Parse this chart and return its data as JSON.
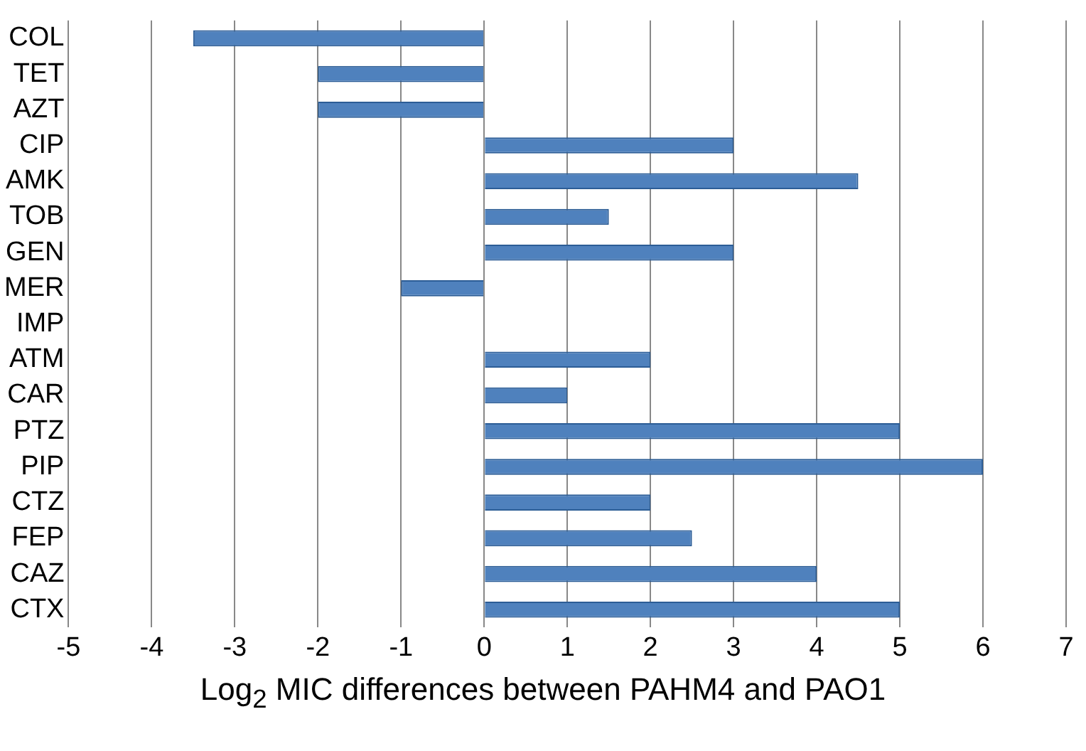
{
  "chart_data": {
    "type": "bar",
    "orientation": "horizontal",
    "xlabel": "Log$_{2}$ MIC differences between PAHM4 and PAO1",
    "categories": [
      "COL",
      "TET",
      "AZT",
      "CIP",
      "AMK",
      "TOB",
      "GEN",
      "MER",
      "IMP",
      "ATM",
      "CAR",
      "PTZ",
      "PIP",
      "CTZ",
      "FEP",
      "CAZ",
      "CTX"
    ],
    "values": [
      -3.5,
      -2,
      -2,
      3,
      4.5,
      1.5,
      3,
      -1,
      0,
      2,
      1,
      5,
      6,
      2,
      2.5,
      4,
      5
    ],
    "color": "#4f81bd",
    "xlim": [
      -5,
      7
    ],
    "xticks": [
      -5,
      -4,
      -3,
      -2,
      -1,
      0,
      1,
      2,
      3,
      4,
      5,
      6,
      7
    ],
    "grid": "x",
    "legend": false
  }
}
